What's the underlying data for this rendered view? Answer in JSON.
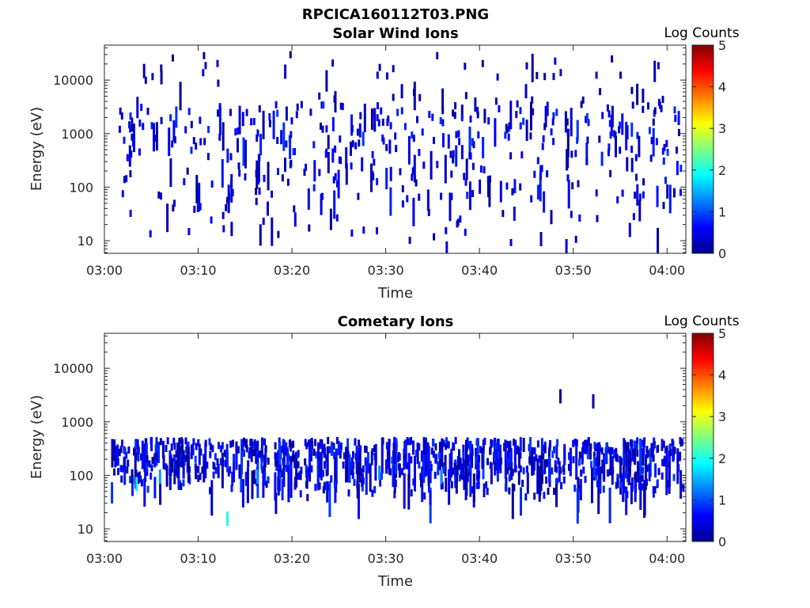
{
  "figure_title": "RPCICA160112T03.PNG",
  "chart_data": [
    {
      "type": "heatmap",
      "title": "Solar Wind Ions",
      "xlabel": "Time",
      "ylabel": "Energy (eV)",
      "x_ticks": [
        "03:00",
        "03:10",
        "03:20",
        "03:30",
        "03:40",
        "03:50",
        "04:00"
      ],
      "x_range_minutes": [
        0,
        62
      ],
      "y_scale": "log",
      "y_ticks": [
        10,
        100,
        1000,
        10000
      ],
      "y_tick_labels": [
        "10",
        "100",
        "1000",
        "10000"
      ],
      "y_range": [
        5.8,
        45000
      ],
      "colorbar": {
        "label": "Log Counts",
        "min": 0,
        "max": 5,
        "ticks": [
          "0",
          "1",
          "2",
          "3",
          "4",
          "5"
        ],
        "colormap": "jet"
      },
      "count_range": [
        0.1,
        1.2
      ],
      "clusters": [
        {
          "t0": 1.5,
          "t1": 61.5,
          "emin": 400,
          "emax": 3500,
          "count": 260,
          "smin": 0.15,
          "smax": 0.9
        },
        {
          "t0": 1.5,
          "t1": 61.5,
          "emin": 60,
          "emax": 400,
          "count": 150,
          "smin": 0.1,
          "smax": 0.8
        },
        {
          "t0": 2,
          "t1": 61.5,
          "emin": 8,
          "emax": 60,
          "count": 55,
          "smin": 0.1,
          "smax": 0.6
        },
        {
          "t0": 3,
          "t1": 61,
          "emin": 3500,
          "emax": 30000,
          "count": 60,
          "smin": 0.1,
          "smax": 0.4
        }
      ]
    },
    {
      "type": "heatmap",
      "title": "Cometary Ions",
      "xlabel": "Time",
      "ylabel": "Energy (eV)",
      "x_ticks": [
        "03:00",
        "03:10",
        "03:20",
        "03:30",
        "03:40",
        "03:50",
        "04:00"
      ],
      "x_range_minutes": [
        0,
        62
      ],
      "y_scale": "log",
      "y_ticks": [
        10,
        100,
        1000,
        10000
      ],
      "y_tick_labels": [
        "10",
        "100",
        "1000",
        "10000"
      ],
      "y_range": [
        5.8,
        45000
      ],
      "colorbar": {
        "label": "Log Counts",
        "min": 0,
        "max": 5,
        "ticks": [
          "0",
          "1",
          "2",
          "3",
          "4",
          "5"
        ],
        "colormap": "jet"
      },
      "count_range": [
        0.1,
        1.6
      ],
      "bursts_minutes": [
        2.5,
        5.5,
        9.5,
        13,
        16,
        19.5,
        22.5,
        25.5,
        29,
        32.5,
        35.5,
        38.5,
        41.5,
        44.5,
        47.5,
        51,
        54,
        57,
        60.5
      ],
      "burst_energy_range": [
        8,
        450
      ],
      "hot_spots": [
        {
          "t": 3.3,
          "e": 80,
          "v": 1.8
        },
        {
          "t": 5.8,
          "e": 110,
          "v": 1.4
        },
        {
          "t": 13,
          "e": 18,
          "v": 2.0
        },
        {
          "t": 16.2,
          "e": 110,
          "v": 1.3
        },
        {
          "t": 29.2,
          "e": 130,
          "v": 1.3
        },
        {
          "t": 35.8,
          "e": 110,
          "v": 1.3
        },
        {
          "t": 48.5,
          "e": 3500,
          "v": 0.2
        },
        {
          "t": 52,
          "e": 2800,
          "v": 0.2
        }
      ]
    }
  ]
}
